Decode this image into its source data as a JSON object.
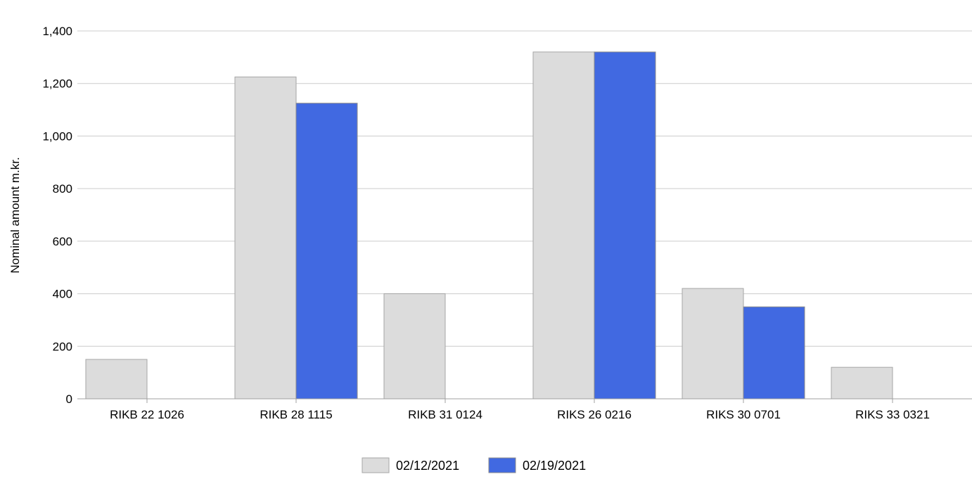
{
  "chart_data": {
    "type": "bar",
    "title": "",
    "xlabel": "",
    "ylabel": "Nominal amount m.kr.",
    "ylim": [
      0,
      1400
    ],
    "yticks": [
      0,
      200,
      400,
      600,
      800,
      1000,
      1200,
      1400
    ],
    "ytick_labels": [
      "0",
      "200",
      "400",
      "600",
      "800",
      "1,000",
      "1,200",
      "1,400"
    ],
    "grid": true,
    "legend_position": "bottom-center",
    "categories": [
      "RIKB 22 1026",
      "RIKB 28 1115",
      "RIKB 31 0124",
      "RIKS 26 0216",
      "RIKS 30 0701",
      "RIKS 33 0321"
    ],
    "series": [
      {
        "name": "02/12/2021",
        "color": "#dcdcdc",
        "stroke": "#a6a6a6",
        "values": [
          150,
          1225,
          400,
          1320,
          420,
          120
        ]
      },
      {
        "name": "02/19/2021",
        "color": "#4169e1",
        "stroke": "#8a8a8a",
        "values": [
          0,
          1125,
          0,
          1320,
          350,
          0
        ]
      }
    ]
  }
}
